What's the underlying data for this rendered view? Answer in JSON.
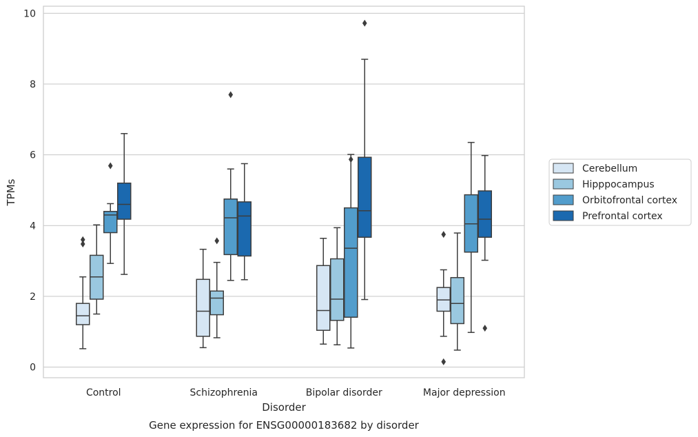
{
  "chart_data": {
    "type": "box",
    "title": "",
    "caption": "Gene expression for ENSG00000183682 by disorder",
    "xlabel": "Disorder",
    "ylabel": "TPMs",
    "ylim": [
      -0.3,
      10.2
    ],
    "yticks": [
      0,
      2,
      4,
      6,
      8,
      10
    ],
    "grid": "horizontal",
    "legend_position": "right",
    "categories": [
      "Control",
      "Schizophrenia",
      "Bipolar disorder",
      "Major depression"
    ],
    "series": [
      {
        "name": "Cerebellum",
        "color": "#d6e6f4",
        "boxes": [
          {
            "whisker_low": 0.52,
            "q1": 1.2,
            "median": 1.45,
            "q3": 1.8,
            "whisker_high": 2.55,
            "outliers": [
              3.48,
              3.6
            ]
          },
          {
            "whisker_low": 0.55,
            "q1": 0.87,
            "median": 1.58,
            "q3": 2.48,
            "whisker_high": 3.33,
            "outliers": []
          },
          {
            "whisker_low": 0.65,
            "q1": 1.04,
            "median": 1.6,
            "q3": 2.87,
            "whisker_high": 3.64,
            "outliers": []
          },
          {
            "whisker_low": 0.87,
            "q1": 1.58,
            "median": 1.9,
            "q3": 2.25,
            "whisker_high": 2.75,
            "outliers": [
              3.75,
              0.15
            ]
          }
        ]
      },
      {
        "name": "Hipppocampus",
        "color": "#9ac8e0",
        "boxes": [
          {
            "whisker_low": 1.5,
            "q1": 1.92,
            "median": 2.55,
            "q3": 3.16,
            "whisker_high": 4.02,
            "outliers": []
          },
          {
            "whisker_low": 0.83,
            "q1": 1.48,
            "median": 1.95,
            "q3": 2.15,
            "whisker_high": 2.96,
            "outliers": [
              3.57
            ]
          },
          {
            "whisker_low": 0.63,
            "q1": 1.32,
            "median": 1.92,
            "q3": 3.06,
            "whisker_high": 3.94,
            "outliers": []
          },
          {
            "whisker_low": 0.48,
            "q1": 1.23,
            "median": 1.8,
            "q3": 2.53,
            "whisker_high": 3.79,
            "outliers": []
          }
        ]
      },
      {
        "name": "Orbitofrontal cortex",
        "color": "#529dcc",
        "boxes": [
          {
            "whisker_low": 2.93,
            "q1": 3.8,
            "median": 4.3,
            "q3": 4.4,
            "whisker_high": 4.62,
            "outliers": [
              5.69
            ]
          },
          {
            "whisker_low": 2.45,
            "q1": 3.18,
            "median": 4.22,
            "q3": 4.75,
            "whisker_high": 5.6,
            "outliers": [
              7.7
            ]
          },
          {
            "whisker_low": 0.54,
            "q1": 1.41,
            "median": 3.36,
            "q3": 4.5,
            "whisker_high": 6.01,
            "outliers": [
              5.87
            ]
          },
          {
            "whisker_low": 0.98,
            "q1": 3.25,
            "median": 4.05,
            "q3": 4.87,
            "whisker_high": 6.35,
            "outliers": []
          }
        ]
      },
      {
        "name": "Prefrontal cortex",
        "color": "#1b69af",
        "boxes": [
          {
            "whisker_low": 2.62,
            "q1": 4.18,
            "median": 4.6,
            "q3": 5.2,
            "whisker_high": 6.6,
            "outliers": []
          },
          {
            "whisker_low": 2.47,
            "q1": 3.14,
            "median": 4.27,
            "q3": 4.67,
            "whisker_high": 5.75,
            "outliers": []
          },
          {
            "whisker_low": 1.91,
            "q1": 3.67,
            "median": 4.42,
            "q3": 5.93,
            "whisker_high": 8.7,
            "outliers": [
              9.72
            ]
          },
          {
            "whisker_low": 3.02,
            "q1": 3.67,
            "median": 4.18,
            "q3": 4.98,
            "whisker_high": 5.98,
            "outliers": [
              1.1
            ]
          }
        ]
      }
    ]
  }
}
